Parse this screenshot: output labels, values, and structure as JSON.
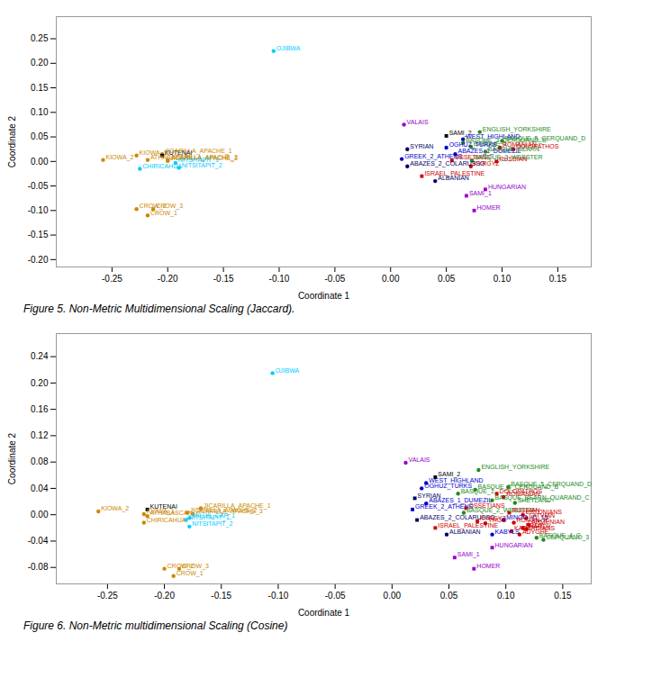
{
  "chart_data": [
    {
      "type": "scatter",
      "title": "Figure 5. Non-Metric Multidimensional Scaling (Jaccard).",
      "xlabel": "Coordinate 1",
      "ylabel": "Coordinate 2",
      "xlim": [
        -0.3,
        0.18
      ],
      "ylim": [
        -0.215,
        0.295
      ],
      "xticks": [
        -0.25,
        {
          "value": -0.2,
          "label": "-0.20"
        },
        -0.15,
        {
          "value": -0.1,
          "label": "-0.10"
        },
        -0.05,
        {
          "value": 0.0,
          "label": "0.00"
        },
        0.05,
        {
          "value": 0.1,
          "label": "0.10"
        },
        0.15
      ],
      "yticks": [
        {
          "value": -0.2,
          "label": "-0.20"
        },
        -0.15,
        {
          "value": -0.1,
          "label": "-0.10"
        },
        -0.05,
        {
          "value": 0.0,
          "label": "0.00"
        },
        0.05,
        {
          "value": 0.1,
          "label": "0.10"
        },
        0.15,
        {
          "value": 0.2,
          "label": "0.20"
        },
        0.25
      ],
      "grid": false,
      "points": [
        {
          "label": "OJIBWA",
          "x": -0.105,
          "y": 0.225,
          "color": "#00CCFF",
          "marker": "circle"
        },
        {
          "label": "VALAIS",
          "x": 0.012,
          "y": 0.075,
          "color": "#9900CC",
          "marker": "circle"
        },
        {
          "label": "ENGLISH_YORKSHIRE",
          "x": 0.08,
          "y": 0.06,
          "color": "#228B22",
          "marker": "circle"
        },
        {
          "label": "SAMI_2",
          "x": 0.05,
          "y": 0.052,
          "color": "#000000",
          "marker": "square"
        },
        {
          "label": "WEST_HIGHLAND",
          "x": 0.065,
          "y": 0.045,
          "color": "#0000CC",
          "marker": "circle"
        },
        {
          "label": "BASQUE_3_CERQUAND_B",
          "x": 0.065,
          "y": 0.038,
          "color": "#228B22",
          "marker": "circle"
        },
        {
          "label": "BASQUE_5_CERQUAND_D",
          "x": 0.1,
          "y": 0.042,
          "color": "#228B22",
          "marker": "circle"
        },
        {
          "label": "BASQUE_1",
          "x": 0.072,
          "y": 0.03,
          "color": "#228B22",
          "marker": "circle"
        },
        {
          "label": "OGHUZ_TURKS",
          "x": 0.05,
          "y": 0.028,
          "color": "#0000CC",
          "marker": "circle"
        },
        {
          "label": "ROMANIAN",
          "x": 0.098,
          "y": 0.028,
          "color": "#CC0000",
          "marker": "circle"
        },
        {
          "label": "DOLOPATHOS",
          "x": 0.11,
          "y": 0.025,
          "color": "#CC0000",
          "marker": "square"
        },
        {
          "label": "SYRIAN",
          "x": 0.015,
          "y": 0.025,
          "color": "#000066",
          "marker": "circle"
        },
        {
          "label": "ABAZES_1_DUMEZIL",
          "x": 0.058,
          "y": 0.015,
          "color": "#0000CC",
          "marker": "circle"
        },
        {
          "label": "GREEK_2_ATHENS",
          "x": 0.01,
          "y": 0.005,
          "color": "#0000CC",
          "marker": "circle"
        },
        {
          "label": "OSSETIANS",
          "x": 0.055,
          "y": 0.002,
          "color": "#CC0000",
          "marker": "square"
        },
        {
          "label": "BASQUE_BEARN",
          "x": 0.085,
          "y": 0.02,
          "color": "#228B22",
          "marker": "circle"
        },
        {
          "label": "BASQUE_2_WEBSTER",
          "x": 0.073,
          "y": 0.002,
          "color": "#228B22",
          "marker": "circle"
        },
        {
          "label": "RUSSIAN",
          "x": 0.095,
          "y": 0.0,
          "color": "#CC0000",
          "marker": "square"
        },
        {
          "label": "ABAZES_2_COLARUSSO",
          "x": 0.015,
          "y": -0.01,
          "color": "#000066",
          "marker": "circle"
        },
        {
          "label": "KYRGYZ",
          "x": 0.072,
          "y": -0.01,
          "color": "#CC0000",
          "marker": "circle"
        },
        {
          "label": "ISRAEL_PALESTINE",
          "x": 0.028,
          "y": -0.03,
          "color": "#CC0000",
          "marker": "square"
        },
        {
          "label": "ALBANIAN",
          "x": 0.04,
          "y": -0.04,
          "color": "#000066",
          "marker": "circle"
        },
        {
          "label": "HUNGARIAN",
          "x": 0.085,
          "y": -0.057,
          "color": "#9900CC",
          "marker": "square"
        },
        {
          "label": "SAMI_1",
          "x": 0.068,
          "y": -0.07,
          "color": "#9900CC",
          "marker": "square"
        },
        {
          "label": "HOMER",
          "x": 0.075,
          "y": -0.1,
          "color": "#9900CC",
          "marker": "square"
        },
        {
          "label": "CROW_2",
          "x": -0.228,
          "y": -0.097,
          "color": "#CC8800",
          "marker": "circle"
        },
        {
          "label": "CROW_3",
          "x": -0.213,
          "y": -0.097,
          "color": "#CC8800",
          "marker": "circle"
        },
        {
          "label": "CROW_1",
          "x": -0.218,
          "y": -0.11,
          "color": "#CC8800",
          "marker": "circle"
        },
        {
          "label": "KIOWA_1",
          "x": -0.228,
          "y": 0.012,
          "color": "#CC8800",
          "marker": "circle"
        },
        {
          "label": "KUTENAI",
          "x": -0.205,
          "y": 0.012,
          "color": "#000000",
          "marker": "square"
        },
        {
          "label": "ATHABASCAN",
          "x": -0.218,
          "y": 0.003,
          "color": "#CC8800",
          "marker": "circle"
        },
        {
          "label": "CHIRICAHUA",
          "x": -0.225,
          "y": -0.015,
          "color": "#00CCFF",
          "marker": "circle"
        },
        {
          "label": "JICARILLA_APACHE_1",
          "x": -0.205,
          "y": 0.015,
          "color": "#CC8800",
          "marker": "circle"
        },
        {
          "label": "JICARILLA_APACHE_3",
          "x": -0.2,
          "y": 0.001,
          "color": "#CC8800",
          "marker": "circle"
        },
        {
          "label": "JICARILLA_APACHE_2",
          "x": -0.2,
          "y": 0.003,
          "color": "#CC8800",
          "marker": "circle"
        },
        {
          "label": "NITSITAPIT_1",
          "x": -0.193,
          "y": -0.003,
          "color": "#00CCFF",
          "marker": "circle"
        },
        {
          "label": "NITSITAPIT_2",
          "x": -0.19,
          "y": -0.013,
          "color": "#00CCFF",
          "marker": "circle"
        },
        {
          "label": "KIOWA_2",
          "x": -0.258,
          "y": 0.003,
          "color": "#CC8800",
          "marker": "circle"
        }
      ]
    },
    {
      "type": "scatter",
      "title": "Figure 6. Non-Metric multidimensional Scaling (Cosine)",
      "xlabel": "Coordinate 1",
      "ylabel": "Coordinate 2",
      "xlim": [
        -0.295,
        0.175
      ],
      "ylim": [
        -0.105,
        0.275
      ],
      "xticks": [
        -0.25,
        {
          "value": -0.2,
          "label": "-0.20"
        },
        -0.15,
        {
          "value": -0.1,
          "label": "-0.10"
        },
        -0.05,
        {
          "value": 0.0,
          "label": "0.00"
        },
        0.05,
        {
          "value": 0.1,
          "label": "0.10"
        },
        0.15
      ],
      "yticks": [
        -0.08,
        -0.04,
        {
          "value": 0.0,
          "label": "0.00"
        },
        0.04,
        0.08,
        0.12,
        0.16,
        {
          "value": 0.2,
          "label": "0.20"
        },
        0.24
      ],
      "grid": false,
      "points": [
        {
          "label": "OJIBWA",
          "x": -0.105,
          "y": 0.215,
          "color": "#00CCFF",
          "marker": "circle"
        },
        {
          "label": "VALAIS",
          "x": 0.012,
          "y": 0.079,
          "color": "#9900CC",
          "marker": "circle"
        },
        {
          "label": "ENGLISH_YORKSHIRE",
          "x": 0.076,
          "y": 0.068,
          "color": "#228B22",
          "marker": "circle"
        },
        {
          "label": "SAMI_2",
          "x": 0.038,
          "y": 0.057,
          "color": "#000000",
          "marker": "square"
        },
        {
          "label": "WEST_HIGHLAND",
          "x": 0.03,
          "y": 0.048,
          "color": "#0000CC",
          "marker": "circle"
        },
        {
          "label": "OGHUZ_TURKS",
          "x": 0.026,
          "y": 0.04,
          "color": "#0000CC",
          "marker": "circle"
        },
        {
          "label": "BASQUE_3_CERQUAND_B",
          "x": 0.073,
          "y": 0.038,
          "color": "#228B22",
          "marker": "circle"
        },
        {
          "label": "BASQUE_5_CERQUAND_D",
          "x": 0.102,
          "y": 0.042,
          "color": "#228B22",
          "marker": "circle"
        },
        {
          "label": "BASQUE_1",
          "x": 0.058,
          "y": 0.032,
          "color": "#228B22",
          "marker": "circle"
        },
        {
          "label": "DOLOPATHOS",
          "x": 0.092,
          "y": 0.032,
          "color": "#CC0000",
          "marker": "square"
        },
        {
          "label": "ROMANIAN",
          "x": 0.098,
          "y": 0.027,
          "color": "#CC0000",
          "marker": "circle"
        },
        {
          "label": "SYRIAN",
          "x": 0.02,
          "y": 0.025,
          "color": "#000066",
          "marker": "square"
        },
        {
          "label": "ABAZES_1_DUMEZIL",
          "x": 0.03,
          "y": 0.017,
          "color": "#0000CC",
          "marker": "circle"
        },
        {
          "label": "BASQUE_BEARN_QUARAND_C",
          "x": 0.088,
          "y": 0.022,
          "color": "#228B22",
          "marker": "circle"
        },
        {
          "label": "GREEK_2_ATHENS",
          "x": 0.018,
          "y": 0.008,
          "color": "#0000CC",
          "marker": "square"
        },
        {
          "label": "OSSETIANS",
          "x": 0.065,
          "y": 0.01,
          "color": "#CC0000",
          "marker": "square"
        },
        {
          "label": "BASQUE_2_WEBSTER",
          "x": 0.063,
          "y": 0.003,
          "color": "#228B22",
          "marker": "circle"
        },
        {
          "label": "RUSSIAN",
          "x": 0.103,
          "y": 0.003,
          "color": "#CC0000",
          "marker": "square"
        },
        {
          "label": "ABAZES_2_COLARUSSO",
          "x": 0.022,
          "y": -0.008,
          "color": "#000066",
          "marker": "square"
        },
        {
          "label": "KYRGYZ",
          "x": 0.075,
          "y": -0.01,
          "color": "#CC0000",
          "marker": "circle"
        },
        {
          "label": "ISRAEL_PALESTINE",
          "x": 0.038,
          "y": -0.02,
          "color": "#CC0000",
          "marker": "square"
        },
        {
          "label": "ALBANIAN",
          "x": 0.048,
          "y": -0.03,
          "color": "#000066",
          "marker": "circle"
        },
        {
          "label": "HUNGARIAN",
          "x": 0.088,
          "y": -0.05,
          "color": "#9900CC",
          "marker": "square"
        },
        {
          "label": "SAMI_1",
          "x": 0.055,
          "y": -0.065,
          "color": "#9900CC",
          "marker": "square"
        },
        {
          "label": "HOMER",
          "x": 0.072,
          "y": -0.082,
          "color": "#9900CC",
          "marker": "square"
        },
        {
          "label": "CROW_2",
          "x": -0.2,
          "y": -0.082,
          "color": "#CC8800",
          "marker": "circle"
        },
        {
          "label": "CROW_3",
          "x": -0.187,
          "y": -0.082,
          "color": "#CC8800",
          "marker": "circle"
        },
        {
          "label": "CROW_1",
          "x": -0.192,
          "y": -0.093,
          "color": "#CC8800",
          "marker": "circle"
        },
        {
          "label": "KIOWA_2",
          "x": -0.258,
          "y": 0.005,
          "color": "#CC8800",
          "marker": "circle"
        },
        {
          "label": "KUTENAI",
          "x": -0.215,
          "y": 0.008,
          "color": "#000000",
          "marker": "square"
        },
        {
          "label": "KIOWA_1",
          "x": -0.218,
          "y": 0.001,
          "color": "#CC8800",
          "marker": "circle"
        },
        {
          "label": "ATHABASCAN",
          "x": -0.215,
          "y": -0.002,
          "color": "#CC8800",
          "marker": "circle"
        },
        {
          "label": "CHIRICAHUA",
          "x": -0.218,
          "y": -0.012,
          "color": "#CC8800",
          "marker": "circle"
        },
        {
          "label": "JICARILLA_APACHE_1",
          "x": -0.168,
          "y": 0.01,
          "color": "#CC8800",
          "marker": "circle"
        },
        {
          "label": "JICARILLA_APACHE_3",
          "x": -0.175,
          "y": 0.001,
          "color": "#CC8800",
          "marker": "circle"
        },
        {
          "label": "JICARILLA_APACHE_2",
          "x": -0.18,
          "y": 0.003,
          "color": "#CC8800",
          "marker": "circle"
        },
        {
          "label": "MILUK_CAP_1",
          "x": -0.178,
          "y": -0.005,
          "color": "#00CCFF",
          "marker": "circle"
        },
        {
          "label": "NITSITAPIT_1",
          "x": -0.181,
          "y": -0.008,
          "color": "#00CCFF",
          "marker": "circle"
        },
        {
          "label": "NITSITAPIT_2",
          "x": -0.178,
          "y": -0.018,
          "color": "#00CCFF",
          "marker": "circle"
        },
        {
          "label": "MINGO_IC_15",
          "x": 0.098,
          "y": -0.008,
          "color": "#0000CC",
          "marker": "circle"
        },
        {
          "label": "LATVIAN",
          "x": 0.118,
          "y": -0.005,
          "color": "#CC0000",
          "marker": "circle"
        },
        {
          "label": "ESTONIANS",
          "x": 0.115,
          "y": 0.0,
          "color": "#CC0000",
          "marker": "circle"
        },
        {
          "label": "YRGO",
          "x": 0.082,
          "y": -0.013,
          "color": "#CC0000",
          "marker": "circle"
        },
        {
          "label": "BRDY",
          "x": 0.115,
          "y": -0.02,
          "color": "#CC0000",
          "marker": "circle"
        },
        {
          "label": "SHETLAND",
          "x": 0.108,
          "y": 0.018,
          "color": "#228B22",
          "marker": "circle"
        },
        {
          "label": "KABYLS",
          "x": 0.088,
          "y": -0.03,
          "color": "#0000CC",
          "marker": "circle"
        },
        {
          "label": "KABARDIANS",
          "x": 0.105,
          "y": -0.025,
          "color": "#CC0000",
          "marker": "circle"
        },
        {
          "label": "ADYGHE",
          "x": 0.112,
          "y": -0.03,
          "color": "#CC0000",
          "marker": "circle"
        },
        {
          "label": "BASQUE_4_C",
          "x": 0.127,
          "y": -0.035,
          "color": "#228B22",
          "marker": "circle"
        },
        {
          "label": "CERQUAND_3",
          "x": 0.133,
          "y": -0.038,
          "color": "#228B22",
          "marker": "circle"
        },
        {
          "label": "ARMENIAN",
          "x": 0.12,
          "y": -0.015,
          "color": "#CC0000",
          "marker": "circle"
        },
        {
          "label": "HARDY",
          "x": 0.118,
          "y": -0.022,
          "color": "#CC0000",
          "marker": "circle"
        },
        {
          "label": "ROMAN_IC",
          "x": 0.107,
          "y": -0.012,
          "color": "#CC0000",
          "marker": "circle"
        }
      ]
    }
  ]
}
